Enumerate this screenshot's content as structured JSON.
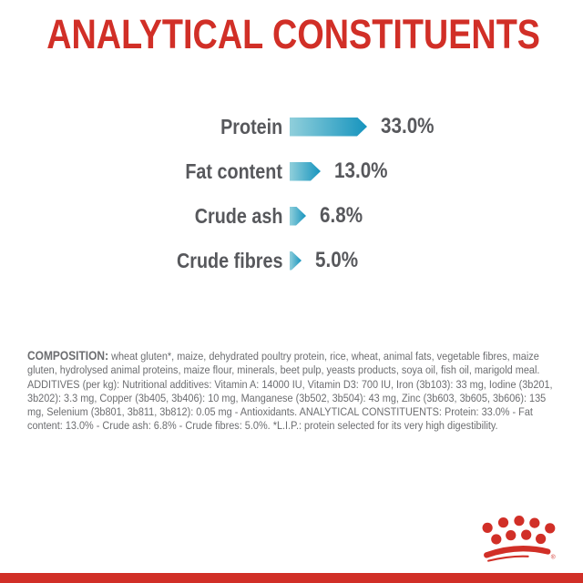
{
  "page": {
    "background": "#ffffff"
  },
  "title": "ANALYTICAL CONSTITUENTS",
  "chart_data": {
    "type": "bar",
    "orientation": "horizontal",
    "title": "ANALYTICAL CONSTITUENTS",
    "categories": [
      "Protein",
      "Fat content",
      "Crude ash",
      "Crude fibres"
    ],
    "values": [
      33.0,
      13.0,
      6.8,
      5.0
    ],
    "value_labels": [
      "33.0%",
      "13.0%",
      "6.8%",
      "5.0%"
    ],
    "unit": "%",
    "xlim": [
      0,
      35
    ],
    "grid": false,
    "legend": "none",
    "bar_shape": "right-pointing-arrow",
    "bar_gradient": [
      "#90cfdb",
      "#1694be"
    ],
    "label_color": "#57585c"
  },
  "composition": {
    "heading": "COMPOSITION:",
    "body": " wheat gluten*, maize, dehydrated poultry protein, rice, wheat, animal fats, vegetable fibres, maize gluten, hydrolysed animal proteins, maize flour, minerals, beet pulp, yeasts products, soya oil, fish oil, marigold meal. ADDITIVES (per kg): Nutritional additives: Vitamin A: 14000 IU, Vitamin D3: 700 IU, Iron (3b103): 33 mg, Iodine (3b201, 3b202): 3.3 mg, Copper (3b405, 3b406): 10 mg, Manganese (3b502, 3b504): 43 mg, Zinc (3b603, 3b605, 3b606): 135 mg, Selenium (3b801, 3b811, 3b812): 0.05 mg - Antioxidants. ANALYTICAL CONSTITUENTS: Protein: 33.0% - Fat content: 13.0% - Crude ash: 6.8% - Crude fibres: 5.0%. *L.I.P.: protein selected for its very high digestibility."
  },
  "footer": {
    "logo": "royal-canin-crown",
    "registered_mark": "®",
    "strip_color": "#d12f27"
  },
  "colors": {
    "brand_red": "#d12f27",
    "bar_gradient_start": "#90cfdb",
    "bar_gradient_end": "#1694be",
    "heading_text": "#57585c",
    "body_text": "#6c6d70"
  }
}
